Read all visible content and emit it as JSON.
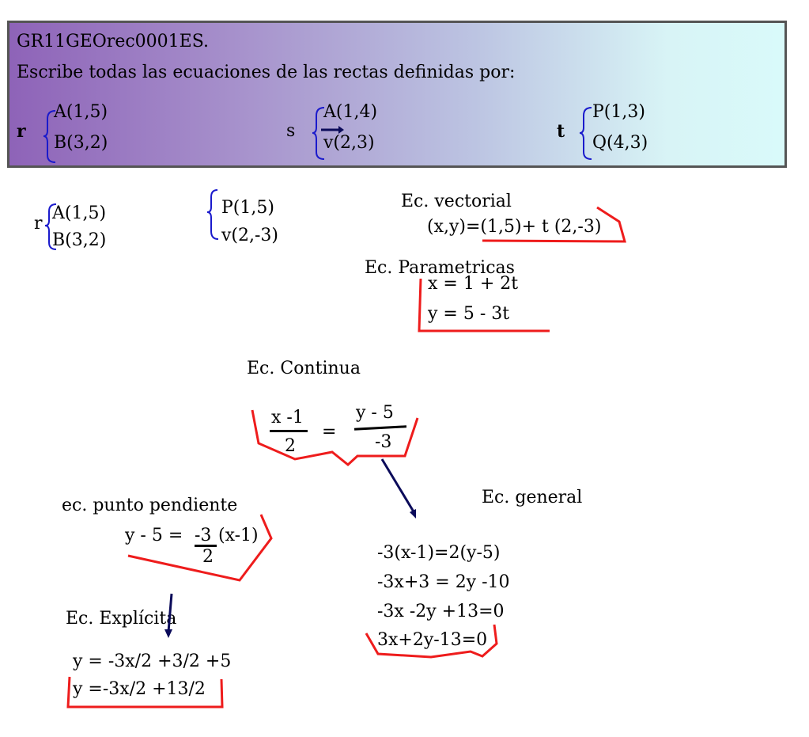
{
  "header": {
    "code": "GR11GEOrec0001ES.",
    "instruction": "Escribe todas las ecuaciones de las rectas definidas por:",
    "lines": [
      {
        "name": "r",
        "p1": "A(1,5)",
        "p2": "B(3,2)"
      },
      {
        "name": "s",
        "p1": "A(1,4)",
        "p2": "v(2,3)"
      },
      {
        "name": "t",
        "p1": "P(1,3)",
        "p2": "Q(4,3)"
      }
    ]
  },
  "work": {
    "r_label": "r",
    "r_p1": "A(1,5)",
    "r_p2": "B(3,2)",
    "pv_p1": "P(1,5)",
    "pv_p2": "v(2,-3)",
    "vectorial_title": "Ec. vectorial",
    "vectorial_eq": "(x,y)=(1,5)+ t (2,-3)",
    "param_title": "Ec. Parametricas",
    "param_x": "x = 1 + 2t",
    "param_y": "y = 5 - 3t",
    "continua_title": "Ec. Continua",
    "cont_num_left": "x -1",
    "cont_den_left": "2",
    "cont_equals": "=",
    "cont_num_right": "y - 5",
    "cont_den_right": "-3",
    "general_title": "Ec. general",
    "general_steps": [
      "-3(x-1)=2(y-5)",
      "-3x+3 = 2y -10",
      "-3x -2y +13=0",
      "3x+2y-13=0"
    ],
    "pp_title": "ec. punto pendiente",
    "pp_left": "y - 5 =",
    "pp_num": "-3",
    "pp_den": "2",
    "pp_right": "(x-1)",
    "expl_title": "Ec. Explícita",
    "expl_1": "y = -3x/2 +3/2 +5",
    "expl_2": "y =-3x/2 +13/2"
  },
  "colors": {
    "ink_red": "#ee1c1c",
    "ink_blue": "#1a1acc",
    "ink_navy": "#0b0b5a"
  }
}
